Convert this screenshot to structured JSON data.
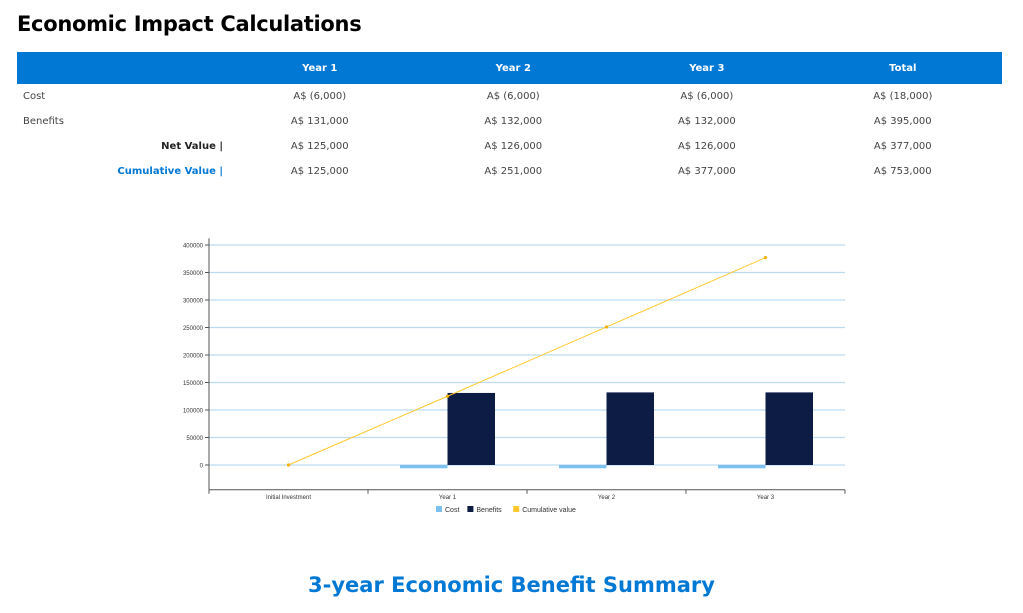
{
  "header": {
    "title": "Economic Impact Calculations"
  },
  "table": {
    "columns": [
      "",
      "Year 1",
      "Year 2",
      "Year 3",
      "Total"
    ],
    "rows": [
      {
        "label": "Cost",
        "values": [
          "A$ (6,000)",
          "A$ (6,000)",
          "A$ (6,000)",
          "A$ (18,000)"
        ]
      },
      {
        "label": "Benefits",
        "values": [
          "A$ 131,000",
          "A$ 132,000",
          "A$ 132,000",
          "A$ 395,000"
        ]
      },
      {
        "label": "Net Value |",
        "values": [
          "A$ 125,000",
          "A$ 126,000",
          "A$ 126,000",
          "A$ 377,000"
        ]
      },
      {
        "label": "Cumulative Value |",
        "values": [
          "A$ 125,000",
          "A$ 251,000",
          "A$ 377,000",
          "A$ 753,000"
        ]
      }
    ]
  },
  "chart_data": {
    "type": "bar",
    "title": "",
    "xlabel": "",
    "ylabel": "",
    "categories": [
      "Initial Investment",
      "Year 1",
      "Year 2",
      "Year 3"
    ],
    "series": [
      {
        "name": "Cost",
        "type": "bar",
        "color": "#7cc0f0",
        "values": [
          0,
          -6000,
          -6000,
          -6000
        ]
      },
      {
        "name": "Benefits",
        "type": "bar",
        "color": "#0c1c45",
        "values": [
          0,
          131000,
          132000,
          132000
        ]
      },
      {
        "name": "Cumulative value",
        "type": "line",
        "color": "#ffc82c",
        "values": [
          0,
          125000,
          251000,
          377000
        ]
      }
    ],
    "yticks": [
      "0",
      "50000",
      "100000",
      "150000",
      "200000",
      "250000",
      "300000",
      "350000",
      "400000"
    ],
    "ylim": [
      -45000,
      412000
    ],
    "grid": true,
    "legend": "bottom"
  },
  "footer": {
    "summary_title": "3-year Economic Benefit Summary"
  }
}
